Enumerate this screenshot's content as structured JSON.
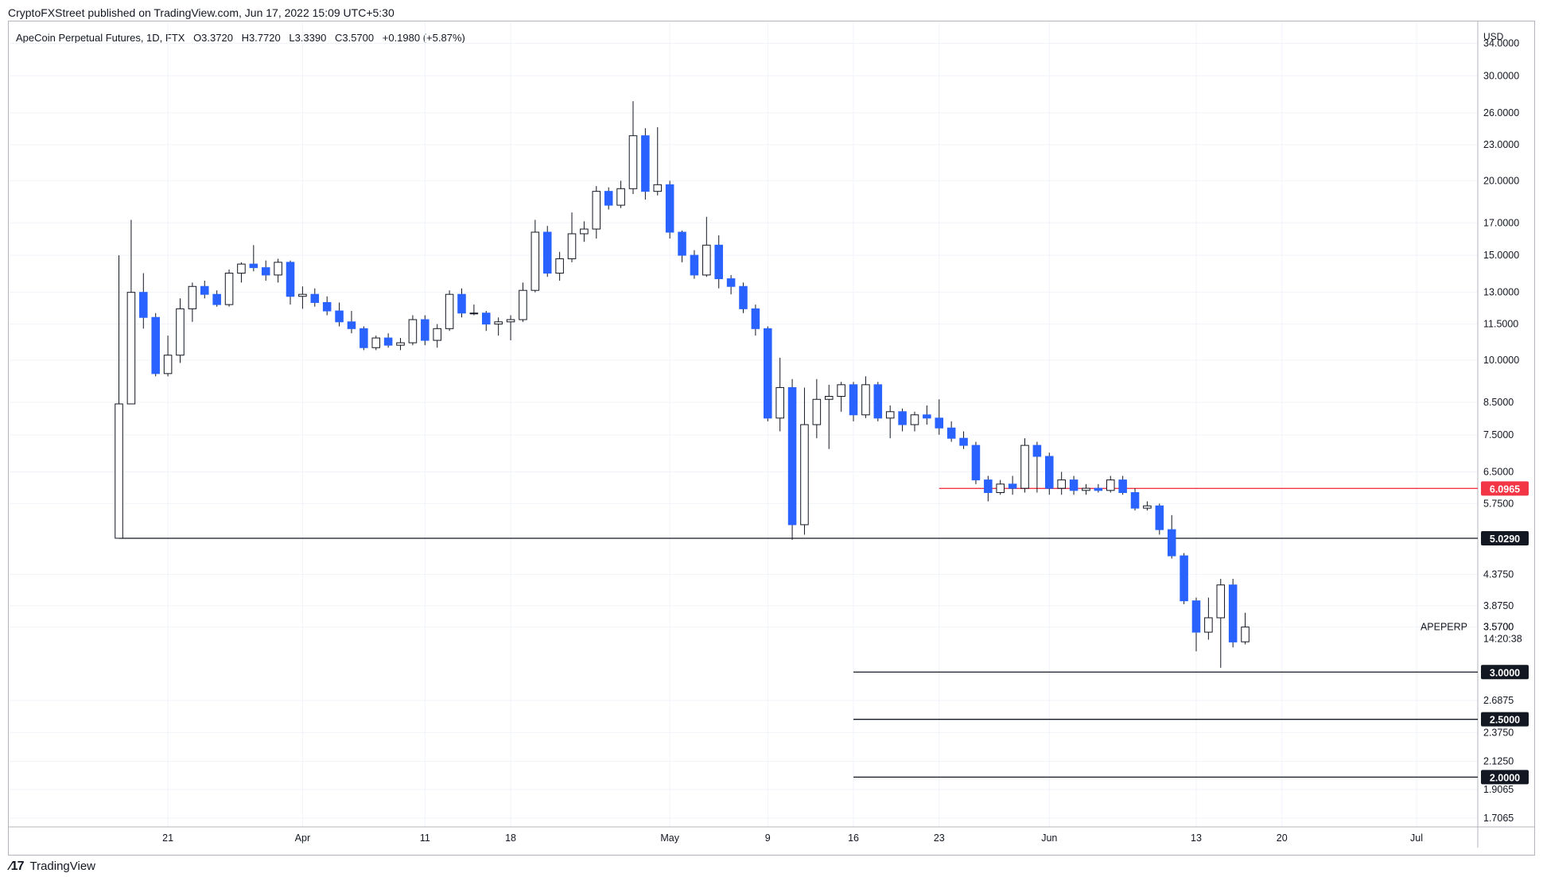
{
  "publication": "CryptoFXStreet published on TradingView.com, Jun 17, 2022 15:09 UTC+5:30",
  "legend": {
    "symbol": "ApeCoin Perpetual Futures, 1D, FTX",
    "open": "O3.3720",
    "high": "H3.7720",
    "low": "L3.3390",
    "close": "C3.5700",
    "change": "+0.1980 (+5.87%)"
  },
  "footer": {
    "brand": "TradingView",
    "logo_icon": "tradingview-logo-icon"
  },
  "chart_data": {
    "type": "candlestick",
    "title": "ApeCoin Perpetual Futures, 1D, FTX",
    "currency_label": "USD",
    "y_scale": "log",
    "ylim": [
      1.65,
      37.0
    ],
    "y_tick_labels": [
      "34.0000",
      "30.0000",
      "26.0000",
      "23.0000",
      "20.0000",
      "17.0000",
      "15.0000",
      "13.0000",
      "11.5000",
      "10.0000",
      "8.5000",
      "7.5000",
      "6.5000",
      "5.7500",
      "4.3750",
      "3.8750",
      "3.5700",
      "2.6875",
      "2.3750",
      "2.1250",
      "1.9065",
      "1.7065"
    ],
    "x_tick_labels": [
      "21",
      "Apr",
      "11",
      "18",
      "May",
      "9",
      "16",
      "23",
      "Jun",
      "13",
      "20",
      "Jul"
    ],
    "x_tick_dates": [
      "2022-03-21",
      "2022-04-01",
      "2022-04-11",
      "2022-04-18",
      "2022-05-01",
      "2022-05-09",
      "2022-05-16",
      "2022-05-23",
      "2022-06-01",
      "2022-06-13",
      "2022-06-20",
      "2022-07-01"
    ],
    "x_range": [
      "2022-03-08",
      "2022-07-06"
    ],
    "symbol_label": "APEPERP",
    "countdown": "14:20:38",
    "up_color": "#ffffff",
    "down_color": "#2962ff",
    "candles": [
      {
        "date": "2022-03-17",
        "o": 5.03,
        "h": 15.0,
        "l": 5.03,
        "c": 8.45
      },
      {
        "date": "2022-03-18",
        "o": 8.45,
        "h": 17.2,
        "l": 8.45,
        "c": 13.0
      },
      {
        "date": "2022-03-19",
        "o": 13.0,
        "h": 14.0,
        "l": 11.3,
        "c": 11.8
      },
      {
        "date": "2022-03-20",
        "o": 11.8,
        "h": 12.0,
        "l": 9.4,
        "c": 9.5
      },
      {
        "date": "2022-03-21",
        "o": 9.5,
        "h": 11.0,
        "l": 9.4,
        "c": 10.2
      },
      {
        "date": "2022-03-22",
        "o": 10.2,
        "h": 12.7,
        "l": 9.9,
        "c": 12.2
      },
      {
        "date": "2022-03-23",
        "o": 12.2,
        "h": 13.5,
        "l": 11.6,
        "c": 13.3
      },
      {
        "date": "2022-03-24",
        "o": 13.3,
        "h": 13.6,
        "l": 12.7,
        "c": 12.9
      },
      {
        "date": "2022-03-25",
        "o": 12.9,
        "h": 13.1,
        "l": 12.3,
        "c": 12.4
      },
      {
        "date": "2022-03-26",
        "o": 12.4,
        "h": 14.2,
        "l": 12.3,
        "c": 14.0
      },
      {
        "date": "2022-03-27",
        "o": 14.0,
        "h": 14.6,
        "l": 13.5,
        "c": 14.5
      },
      {
        "date": "2022-03-28",
        "o": 14.5,
        "h": 15.6,
        "l": 14.1,
        "c": 14.3
      },
      {
        "date": "2022-03-29",
        "o": 14.3,
        "h": 14.7,
        "l": 13.6,
        "c": 13.9
      },
      {
        "date": "2022-03-30",
        "o": 13.9,
        "h": 14.8,
        "l": 13.5,
        "c": 14.6
      },
      {
        "date": "2022-03-31",
        "o": 14.6,
        "h": 14.7,
        "l": 12.4,
        "c": 12.8
      },
      {
        "date": "2022-04-01",
        "o": 12.8,
        "h": 13.3,
        "l": 12.2,
        "c": 12.9
      },
      {
        "date": "2022-04-02",
        "o": 12.9,
        "h": 13.2,
        "l": 12.3,
        "c": 12.5
      },
      {
        "date": "2022-04-03",
        "o": 12.5,
        "h": 12.8,
        "l": 11.9,
        "c": 12.1
      },
      {
        "date": "2022-04-04",
        "o": 12.1,
        "h": 12.5,
        "l": 11.4,
        "c": 11.6
      },
      {
        "date": "2022-04-05",
        "o": 11.6,
        "h": 12.1,
        "l": 11.1,
        "c": 11.3
      },
      {
        "date": "2022-04-06",
        "o": 11.3,
        "h": 11.4,
        "l": 10.4,
        "c": 10.5
      },
      {
        "date": "2022-04-07",
        "o": 10.5,
        "h": 11.0,
        "l": 10.4,
        "c": 10.9
      },
      {
        "date": "2022-04-08",
        "o": 10.9,
        "h": 11.1,
        "l": 10.5,
        "c": 10.6
      },
      {
        "date": "2022-04-09",
        "o": 10.6,
        "h": 10.9,
        "l": 10.4,
        "c": 10.7
      },
      {
        "date": "2022-04-10",
        "o": 10.7,
        "h": 11.9,
        "l": 10.6,
        "c": 11.7
      },
      {
        "date": "2022-04-11",
        "o": 11.7,
        "h": 11.9,
        "l": 10.6,
        "c": 10.8
      },
      {
        "date": "2022-04-12",
        "o": 10.8,
        "h": 11.5,
        "l": 10.5,
        "c": 11.3
      },
      {
        "date": "2022-04-13",
        "o": 11.3,
        "h": 13.1,
        "l": 11.2,
        "c": 12.9
      },
      {
        "date": "2022-04-14",
        "o": 12.9,
        "h": 13.2,
        "l": 11.8,
        "c": 12.0
      },
      {
        "date": "2022-04-15",
        "o": 12.0,
        "h": 12.4,
        "l": 11.9,
        "c": 12.0
      },
      {
        "date": "2022-04-16",
        "o": 12.0,
        "h": 12.1,
        "l": 11.2,
        "c": 11.5
      },
      {
        "date": "2022-04-17",
        "o": 11.5,
        "h": 11.8,
        "l": 11.0,
        "c": 11.6
      },
      {
        "date": "2022-04-18",
        "o": 11.6,
        "h": 11.9,
        "l": 10.8,
        "c": 11.7
      },
      {
        "date": "2022-04-19",
        "o": 11.7,
        "h": 13.5,
        "l": 11.6,
        "c": 13.1
      },
      {
        "date": "2022-04-20",
        "o": 13.1,
        "h": 17.2,
        "l": 13.0,
        "c": 16.4
      },
      {
        "date": "2022-04-21",
        "o": 16.4,
        "h": 16.8,
        "l": 13.8,
        "c": 14.0
      },
      {
        "date": "2022-04-22",
        "o": 14.0,
        "h": 15.2,
        "l": 13.6,
        "c": 14.8
      },
      {
        "date": "2022-04-23",
        "o": 14.8,
        "h": 17.7,
        "l": 14.6,
        "c": 16.3
      },
      {
        "date": "2022-04-24",
        "o": 16.3,
        "h": 17.1,
        "l": 15.8,
        "c": 16.6
      },
      {
        "date": "2022-04-25",
        "o": 16.6,
        "h": 19.6,
        "l": 16.0,
        "c": 19.2
      },
      {
        "date": "2022-04-26",
        "o": 19.2,
        "h": 19.5,
        "l": 17.9,
        "c": 18.2
      },
      {
        "date": "2022-04-27",
        "o": 18.2,
        "h": 20.0,
        "l": 18.0,
        "c": 19.4
      },
      {
        "date": "2022-04-28",
        "o": 19.4,
        "h": 27.2,
        "l": 19.0,
        "c": 23.8
      },
      {
        "date": "2022-04-29",
        "o": 23.8,
        "h": 24.5,
        "l": 18.6,
        "c": 19.2
      },
      {
        "date": "2022-04-30",
        "o": 19.2,
        "h": 24.6,
        "l": 18.9,
        "c": 19.7
      },
      {
        "date": "2022-05-01",
        "o": 19.7,
        "h": 20.0,
        "l": 16.0,
        "c": 16.4
      },
      {
        "date": "2022-05-02",
        "o": 16.4,
        "h": 16.5,
        "l": 14.6,
        "c": 15.0
      },
      {
        "date": "2022-05-03",
        "o": 15.0,
        "h": 15.3,
        "l": 13.7,
        "c": 13.9
      },
      {
        "date": "2022-05-04",
        "o": 13.9,
        "h": 17.4,
        "l": 13.8,
        "c": 15.6
      },
      {
        "date": "2022-05-05",
        "o": 15.6,
        "h": 16.2,
        "l": 13.2,
        "c": 13.7
      },
      {
        "date": "2022-05-06",
        "o": 13.7,
        "h": 13.9,
        "l": 12.9,
        "c": 13.3
      },
      {
        "date": "2022-05-07",
        "o": 13.3,
        "h": 13.5,
        "l": 12.0,
        "c": 12.2
      },
      {
        "date": "2022-05-08",
        "o": 12.2,
        "h": 12.4,
        "l": 11.0,
        "c": 11.3
      },
      {
        "date": "2022-05-09",
        "o": 11.3,
        "h": 11.4,
        "l": 7.9,
        "c": 8.0
      },
      {
        "date": "2022-05-10",
        "o": 8.0,
        "h": 10.1,
        "l": 7.6,
        "c": 9.0
      },
      {
        "date": "2022-05-11",
        "o": 9.0,
        "h": 9.3,
        "l": 5.0,
        "c": 5.3
      },
      {
        "date": "2022-05-12",
        "o": 5.3,
        "h": 9.0,
        "l": 5.1,
        "c": 7.8
      },
      {
        "date": "2022-05-13",
        "o": 7.8,
        "h": 9.3,
        "l": 7.4,
        "c": 8.6
      },
      {
        "date": "2022-05-14",
        "o": 8.6,
        "h": 9.1,
        "l": 7.1,
        "c": 8.7
      },
      {
        "date": "2022-05-15",
        "o": 8.7,
        "h": 9.2,
        "l": 8.2,
        "c": 9.1
      },
      {
        "date": "2022-05-16",
        "o": 9.1,
        "h": 9.2,
        "l": 7.9,
        "c": 8.1
      },
      {
        "date": "2022-05-17",
        "o": 8.1,
        "h": 9.4,
        "l": 8.0,
        "c": 9.1
      },
      {
        "date": "2022-05-18",
        "o": 9.1,
        "h": 9.2,
        "l": 7.9,
        "c": 8.0
      },
      {
        "date": "2022-05-19",
        "o": 8.0,
        "h": 8.4,
        "l": 7.4,
        "c": 8.2
      },
      {
        "date": "2022-05-20",
        "o": 8.2,
        "h": 8.3,
        "l": 7.6,
        "c": 7.8
      },
      {
        "date": "2022-05-21",
        "o": 7.8,
        "h": 8.2,
        "l": 7.6,
        "c": 8.1
      },
      {
        "date": "2022-05-22",
        "o": 8.1,
        "h": 8.4,
        "l": 7.8,
        "c": 8.0
      },
      {
        "date": "2022-05-23",
        "o": 8.0,
        "h": 8.6,
        "l": 7.5,
        "c": 7.7
      },
      {
        "date": "2022-05-24",
        "o": 7.7,
        "h": 7.9,
        "l": 7.3,
        "c": 7.4
      },
      {
        "date": "2022-05-25",
        "o": 7.4,
        "h": 7.6,
        "l": 7.1,
        "c": 7.2
      },
      {
        "date": "2022-05-26",
        "o": 7.2,
        "h": 7.3,
        "l": 6.2,
        "c": 6.3
      },
      {
        "date": "2022-05-27",
        "o": 6.3,
        "h": 6.4,
        "l": 5.8,
        "c": 6.0
      },
      {
        "date": "2022-05-28",
        "o": 6.0,
        "h": 6.3,
        "l": 5.95,
        "c": 6.2
      },
      {
        "date": "2022-05-29",
        "o": 6.2,
        "h": 6.4,
        "l": 5.95,
        "c": 6.1
      },
      {
        "date": "2022-05-30",
        "o": 6.1,
        "h": 7.4,
        "l": 6.0,
        "c": 7.2
      },
      {
        "date": "2022-05-31",
        "o": 7.2,
        "h": 7.3,
        "l": 6.0,
        "c": 6.9
      },
      {
        "date": "2022-06-01",
        "o": 6.9,
        "h": 7.0,
        "l": 5.95,
        "c": 6.1
      },
      {
        "date": "2022-06-02",
        "o": 6.1,
        "h": 6.5,
        "l": 5.95,
        "c": 6.3
      },
      {
        "date": "2022-06-03",
        "o": 6.3,
        "h": 6.4,
        "l": 5.95,
        "c": 6.05
      },
      {
        "date": "2022-06-04",
        "o": 6.05,
        "h": 6.2,
        "l": 5.95,
        "c": 6.1
      },
      {
        "date": "2022-06-05",
        "o": 6.1,
        "h": 6.2,
        "l": 6.0,
        "c": 6.05
      },
      {
        "date": "2022-06-06",
        "o": 6.05,
        "h": 6.4,
        "l": 6.0,
        "c": 6.3
      },
      {
        "date": "2022-06-07",
        "o": 6.3,
        "h": 6.4,
        "l": 5.95,
        "c": 6.0
      },
      {
        "date": "2022-06-08",
        "o": 6.0,
        "h": 6.1,
        "l": 5.6,
        "c": 5.65
      },
      {
        "date": "2022-06-09",
        "o": 5.65,
        "h": 5.8,
        "l": 5.6,
        "c": 5.7
      },
      {
        "date": "2022-06-10",
        "o": 5.7,
        "h": 5.75,
        "l": 5.1,
        "c": 5.2
      },
      {
        "date": "2022-06-11",
        "o": 5.2,
        "h": 5.5,
        "l": 4.65,
        "c": 4.7
      },
      {
        "date": "2022-06-12",
        "o": 4.7,
        "h": 4.75,
        "l": 3.9,
        "c": 3.95
      },
      {
        "date": "2022-06-13",
        "o": 3.95,
        "h": 4.0,
        "l": 3.25,
        "c": 3.5
      },
      {
        "date": "2022-06-14",
        "o": 3.5,
        "h": 4.0,
        "l": 3.4,
        "c": 3.7
      },
      {
        "date": "2022-06-15",
        "o": 3.7,
        "h": 4.3,
        "l": 3.05,
        "c": 4.2
      },
      {
        "date": "2022-06-16",
        "o": 4.2,
        "h": 4.3,
        "l": 3.3,
        "c": 3.37
      },
      {
        "date": "2022-06-17",
        "o": 3.372,
        "h": 3.772,
        "l": 3.339,
        "c": 3.57
      }
    ],
    "levels": [
      {
        "value": 6.0965,
        "label": "6.0965",
        "color": "#f23645",
        "from_date": "2022-05-23"
      },
      {
        "value": 5.029,
        "label": "5.0290",
        "color": "#131722",
        "from_date": "2022-03-17"
      },
      {
        "value": 3.0,
        "label": "3.0000",
        "color": "#131722",
        "from_date": "2022-05-16"
      },
      {
        "value": 2.5,
        "label": "2.5000",
        "color": "#131722",
        "from_date": "2022-05-16"
      },
      {
        "value": 2.0,
        "label": "2.0000",
        "color": "#131722",
        "from_date": "2022-05-16"
      }
    ],
    "last_price_label": "3.5700"
  }
}
